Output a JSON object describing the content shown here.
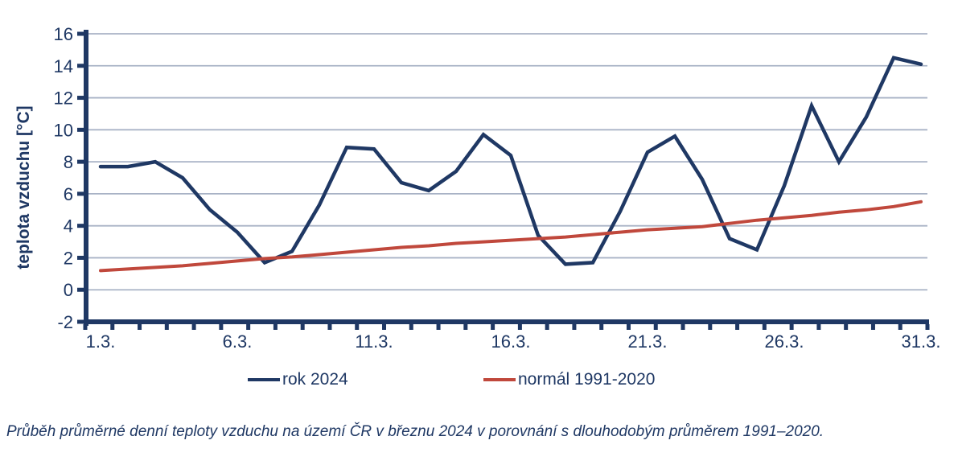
{
  "colors": {
    "navy": "#1f3864",
    "red": "#c0483c",
    "grid": "#a9b3c6",
    "background": "#ffffff"
  },
  "chart_data": {
    "type": "line",
    "title": "",
    "xlabel": "",
    "ylabel": "teplota vzduchu [°C]",
    "ylim": [
      -2,
      16
    ],
    "ytick_step": 2,
    "grid": "horizontal",
    "legend_position": "bottom",
    "categories": [
      "1.3.",
      "2.3.",
      "3.3.",
      "4.3.",
      "5.3.",
      "6.3.",
      "7.3.",
      "8.3.",
      "9.3.",
      "10.3.",
      "11.3.",
      "12.3.",
      "13.3.",
      "14.3.",
      "15.3.",
      "16.3.",
      "17.3.",
      "18.3.",
      "19.3.",
      "20.3.",
      "21.3.",
      "22.3.",
      "23.3.",
      "24.3.",
      "25.3.",
      "26.3.",
      "27.3.",
      "28.3.",
      "29.3.",
      "30.3.",
      "31.3."
    ],
    "x_tick_labels_shown": [
      "1.3.",
      "6.3.",
      "11.3.",
      "16.3.",
      "21.3.",
      "26.3.",
      "31.3."
    ],
    "x_tick_days_shown": [
      1,
      6,
      11,
      16,
      21,
      26,
      31
    ],
    "y_tick_labels": [
      "-2",
      "0",
      "2",
      "4",
      "6",
      "8",
      "10",
      "12",
      "14",
      "16"
    ],
    "series": [
      {
        "name": "rok 2024",
        "color": "#1f3864",
        "values": [
          7.7,
          7.7,
          8.0,
          7.0,
          5.0,
          3.6,
          1.7,
          2.4,
          5.3,
          8.9,
          8.8,
          6.7,
          6.2,
          7.4,
          9.7,
          8.4,
          3.4,
          1.6,
          1.7,
          4.9,
          8.6,
          9.6,
          6.9,
          3.2,
          2.5,
          6.5,
          11.5,
          8.0,
          10.8,
          14.5,
          14.1
        ]
      },
      {
        "name": "normál 1991-2020",
        "color": "#c0483c",
        "values": [
          1.2,
          1.3,
          1.4,
          1.5,
          1.65,
          1.8,
          1.95,
          2.05,
          2.2,
          2.35,
          2.5,
          2.65,
          2.75,
          2.9,
          3.0,
          3.1,
          3.2,
          3.3,
          3.45,
          3.6,
          3.75,
          3.85,
          3.95,
          4.15,
          4.35,
          4.5,
          4.65,
          4.85,
          5.0,
          5.2,
          5.5
        ]
      }
    ]
  },
  "legend": {
    "items": [
      {
        "label": "rok 2024",
        "color": "#1f3864"
      },
      {
        "label": "normál 1991-2020",
        "color": "#c0483c"
      }
    ]
  },
  "y_axis_title": "teplota vzduchu [°C]",
  "caption": "Průběh průměrné denní teploty vzduchu na území ČR v březnu 2024 v porovnání s dlouhodobým průměrem 1991–2020."
}
